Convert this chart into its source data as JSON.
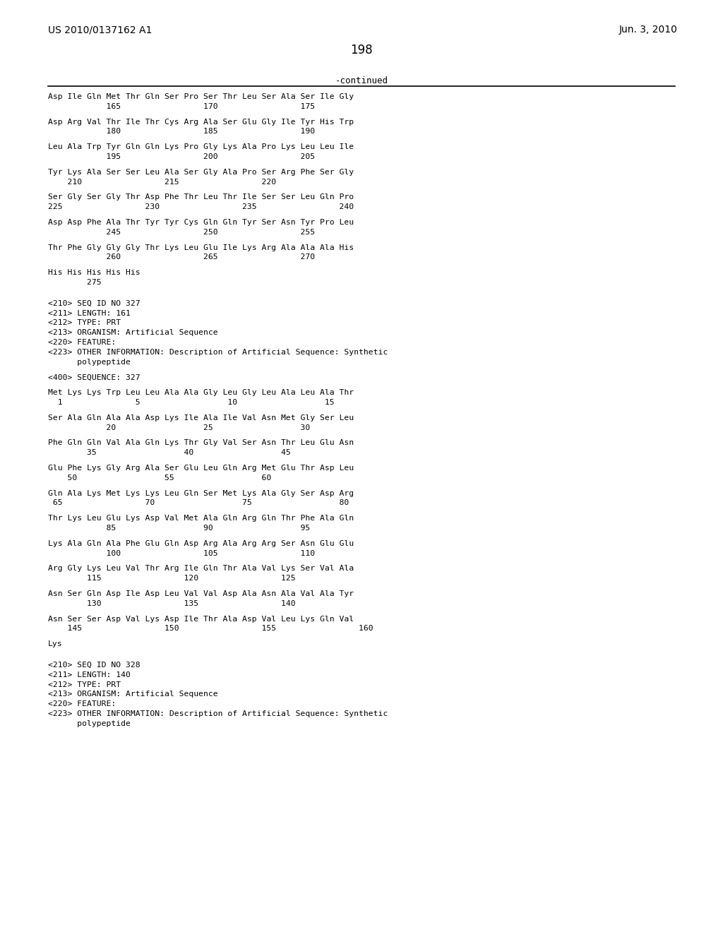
{
  "header_left": "US 2010/0137162 A1",
  "header_right": "Jun. 3, 2010",
  "page_number": "198",
  "continued_label": "-continued",
  "background_color": "#ffffff",
  "text_color": "#000000",
  "lines": [
    "Asp Ile Gln Met Thr Gln Ser Pro Ser Thr Leu Ser Ala Ser Ile Gly",
    "            165                 170                 175",
    "",
    "Asp Arg Val Thr Ile Thr Cys Arg Ala Ser Glu Gly Ile Tyr His Trp",
    "            180                 185                 190",
    "",
    "Leu Ala Trp Tyr Gln Gln Lys Pro Gly Lys Ala Pro Lys Leu Leu Ile",
    "            195                 200                 205",
    "",
    "Tyr Lys Ala Ser Ser Leu Ala Ser Gly Ala Pro Ser Arg Phe Ser Gly",
    "    210                 215                 220",
    "",
    "Ser Gly Ser Gly Thr Asp Phe Thr Leu Thr Ile Ser Ser Leu Gln Pro",
    "225                 230                 235                 240",
    "",
    "Asp Asp Phe Ala Thr Tyr Tyr Cys Gln Gln Tyr Ser Asn Tyr Pro Leu",
    "            245                 250                 255",
    "",
    "Thr Phe Gly Gly Gly Thr Lys Leu Glu Ile Lys Arg Ala Ala Ala His",
    "            260                 265                 270",
    "",
    "His His His His His",
    "        275",
    "",
    "",
    "<210> SEQ ID NO 327",
    "<211> LENGTH: 161",
    "<212> TYPE: PRT",
    "<213> ORGANISM: Artificial Sequence",
    "<220> FEATURE:",
    "<223> OTHER INFORMATION: Description of Artificial Sequence: Synthetic",
    "      polypeptide",
    "",
    "<400> SEQUENCE: 327",
    "",
    "Met Lys Lys Trp Leu Leu Ala Ala Gly Leu Gly Leu Ala Leu Ala Thr",
    "  1               5                  10                  15",
    "",
    "Ser Ala Gln Ala Ala Asp Lys Ile Ala Ile Val Asn Met Gly Ser Leu",
    "            20                  25                  30",
    "",
    "Phe Gln Gln Val Ala Gln Lys Thr Gly Val Ser Asn Thr Leu Glu Asn",
    "        35                  40                  45",
    "",
    "Glu Phe Lys Gly Arg Ala Ser Glu Leu Gln Arg Met Glu Thr Asp Leu",
    "    50                  55                  60",
    "",
    "Gln Ala Lys Met Lys Lys Leu Gln Ser Met Lys Ala Gly Ser Asp Arg",
    " 65                 70                  75                  80",
    "",
    "Thr Lys Leu Glu Lys Asp Val Met Ala Gln Arg Gln Thr Phe Ala Gln",
    "            85                  90                  95",
    "",
    "Lys Ala Gln Ala Phe Glu Gln Asp Arg Ala Arg Arg Ser Asn Glu Glu",
    "            100                 105                 110",
    "",
    "Arg Gly Lys Leu Val Thr Arg Ile Gln Thr Ala Val Lys Ser Val Ala",
    "        115                 120                 125",
    "",
    "Asn Ser Gln Asp Ile Asp Leu Val Val Asp Ala Asn Ala Val Ala Tyr",
    "        130                 135                 140",
    "",
    "Asn Ser Ser Asp Val Lys Asp Ile Thr Ala Asp Val Leu Lys Gln Val",
    "    145                 150                 155                 160",
    "",
    "Lys",
    "",
    "",
    "<210> SEQ ID NO 328",
    "<211> LENGTH: 140",
    "<212> TYPE: PRT",
    "<213> ORGANISM: Artificial Sequence",
    "<220> FEATURE:",
    "<223> OTHER INFORMATION: Description of Artificial Sequence: Synthetic",
    "      polypeptide"
  ]
}
